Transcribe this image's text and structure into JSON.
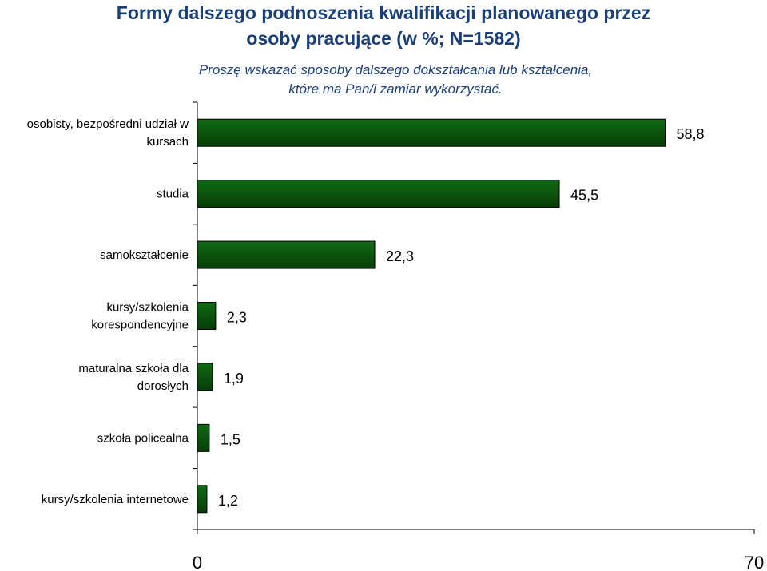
{
  "chart_data": {
    "type": "bar",
    "orientation": "horizontal",
    "title_line1": "Formy dalszego podnoszenia kwalifikacji planowanego przez",
    "title_line2": "osoby pracujące (w %; N=1582)",
    "subtitle_line1": "Proszę wskazać sposoby dalszego dokształcania lub kształcenia,",
    "subtitle_line2": "które ma Pan/i zamiar wykorzystać.",
    "categories": [
      [
        "osobisty, bezpośredni udział w",
        "kursach"
      ],
      [
        "studia"
      ],
      [
        "samokształcenie"
      ],
      [
        "kursy/szkolenia",
        "korespondencyjne"
      ],
      [
        "maturalna szkoła dla",
        "dorosłych"
      ],
      [
        "szkoła policealna"
      ],
      [
        "kursy/szkolenia internetowe"
      ]
    ],
    "values": [
      58.8,
      45.5,
      22.3,
      2.3,
      1.9,
      1.5,
      1.2
    ],
    "value_labels": [
      "58,8",
      "45,5",
      "22,3",
      "2,3",
      "1,9",
      "1,5",
      "1,2"
    ],
    "xlim": [
      0,
      70
    ],
    "x_ticks": [
      "0",
      "70"
    ],
    "grid": false,
    "bar_color": "#0f6b12",
    "bar_color_dark": "#063d08"
  }
}
